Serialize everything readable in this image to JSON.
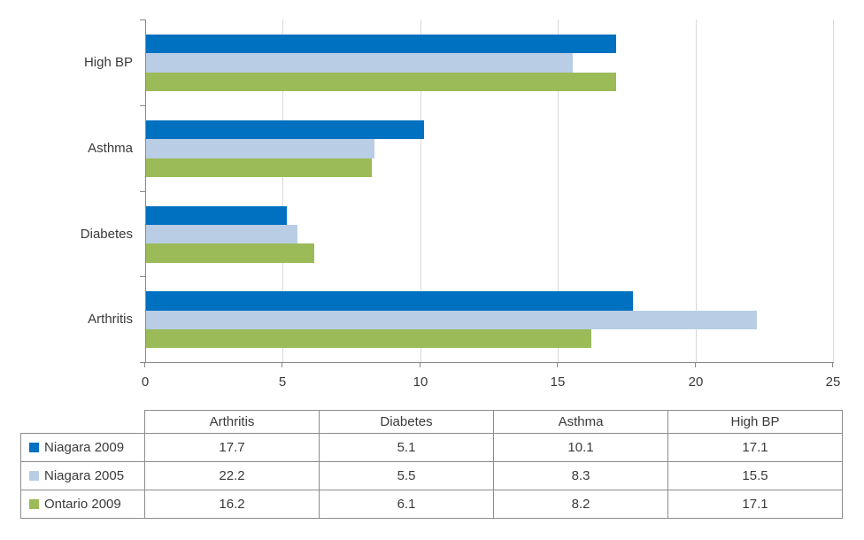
{
  "chart_data": {
    "type": "bar",
    "orientation": "horizontal",
    "title": "",
    "categories": [
      "Arthritis",
      "Diabetes",
      "Asthma",
      "High BP"
    ],
    "category_display_order_top_to_bottom": [
      "High BP",
      "Asthma",
      "Diabetes",
      "Arthritis"
    ],
    "series": [
      {
        "name": "Niagara 2009",
        "color": "#0070C0",
        "values": [
          17.7,
          5.1,
          10.1,
          17.1
        ]
      },
      {
        "name": "Niagara 2005",
        "color": "#B9CDE5",
        "values": [
          22.2,
          5.5,
          8.3,
          15.5
        ]
      },
      {
        "name": "Ontario 2009",
        "color": "#9BBB59",
        "values": [
          16.2,
          6.1,
          8.2,
          17.1
        ]
      }
    ],
    "xlim": [
      0,
      25
    ],
    "x_ticks": [
      "0",
      "5",
      "10",
      "15",
      "20",
      "25"
    ],
    "grid": "vertical",
    "gridline_color": "#D9D9D9",
    "axis_color": "#898989",
    "legend_position": "table-below"
  },
  "table": {
    "corner_label": "",
    "column_headers": [
      "Arthritis",
      "Diabetes",
      "Asthma",
      "High BP"
    ],
    "rows": [
      {
        "label": "Niagara 2009",
        "swatch_color": "#0070C0",
        "values": [
          "17.7",
          "5.1",
          "10.1",
          "17.1"
        ]
      },
      {
        "label": "Niagara 2005",
        "swatch_color": "#B9CDE5",
        "values": [
          "22.2",
          "5.5",
          "8.3",
          "15.5"
        ]
      },
      {
        "label": "Ontario 2009",
        "swatch_color": "#9BBB59",
        "values": [
          "16.2",
          "6.1",
          "8.2",
          "17.1"
        ]
      }
    ],
    "border_color": "#8C8C8C"
  }
}
